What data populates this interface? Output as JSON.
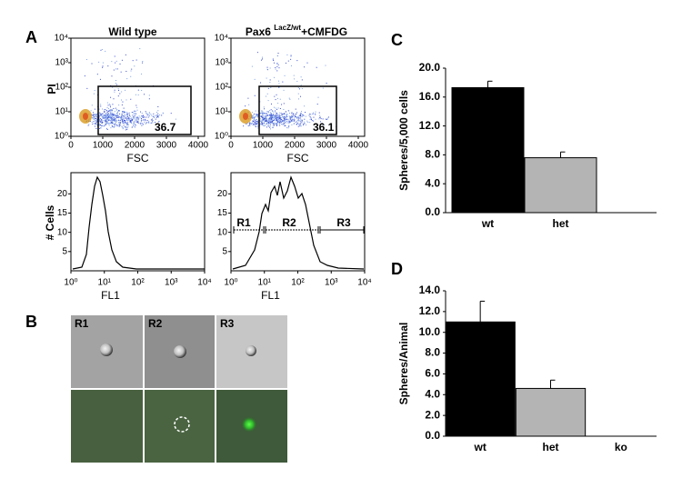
{
  "panel_labels": [
    "A",
    "B",
    "C",
    "D"
  ],
  "panel_a": {
    "scatter": {
      "xlim": [
        0,
        4200
      ],
      "ylim": [
        1,
        10000
      ],
      "xlabel": "FSC",
      "ylabel": "PI",
      "xticks": [
        0,
        1000,
        2000,
        3000,
        4000
      ],
      "yticks": [
        {
          "value": 1,
          "label": "10⁰"
        },
        {
          "value": 10,
          "label": "10¹"
        },
        {
          "value": 100,
          "label": "10²"
        },
        {
          "value": 1000,
          "label": "10³"
        },
        {
          "value": 10000,
          "label": "10⁴"
        }
      ],
      "plots": [
        {
          "title": "Wild type",
          "gate_value": "36.7"
        },
        {
          "title_parts": [
            "Pax6 ",
            "LacZ/wt",
            "+CMFDG"
          ],
          "gate_value": "36.1"
        }
      ]
    },
    "histogram": {
      "xlim": [
        1,
        10000
      ],
      "ylim": [
        0,
        25.5
      ],
      "xlabel": "FL1",
      "ylabel": "# Cells",
      "xticks": [
        {
          "value": 1,
          "label": "10⁰"
        },
        {
          "value": 10,
          "label": "10¹"
        },
        {
          "value": 100,
          "label": "10²"
        },
        {
          "value": 1000,
          "label": "10³"
        },
        {
          "value": 10000,
          "label": "10⁴"
        }
      ],
      "yticks": [
        5,
        10,
        15,
        20
      ],
      "gates": [
        "R1",
        "R2",
        "R3"
      ]
    }
  },
  "panel_b": {
    "columns": [
      "R1",
      "R2",
      "R3"
    ]
  },
  "chart_data": [
    {
      "type": "bar",
      "categories": [
        "wt",
        "het"
      ],
      "values": [
        17.3,
        7.6
      ],
      "errors": [
        0.9,
        0.8
      ],
      "colors": [
        "#000000",
        "#b4b4b4"
      ],
      "ylabel": "Spheres/5,000 cells",
      "ylim": [
        0,
        20
      ],
      "yticks": [
        {
          "value": 0,
          "label": "0.0"
        },
        {
          "value": 4,
          "label": "4.0"
        },
        {
          "value": 8,
          "label": "8.0"
        },
        {
          "value": 12,
          "label": "12.0"
        },
        {
          "value": 16,
          "label": "16.0"
        },
        {
          "value": 20,
          "label": "20.0"
        }
      ]
    },
    {
      "type": "bar",
      "categories": [
        "wt",
        "het",
        "ko"
      ],
      "values": [
        11.0,
        4.6,
        0
      ],
      "errors": [
        2.0,
        0.8,
        null
      ],
      "colors": [
        "#000000",
        "#b4b4b4",
        "#000000"
      ],
      "ylabel": "Spheres/Animal",
      "ylim": [
        0,
        14
      ],
      "yticks": [
        {
          "value": 0,
          "label": "0.0"
        },
        {
          "value": 2,
          "label": "2.0"
        },
        {
          "value": 4,
          "label": "4.0"
        },
        {
          "value": 6,
          "label": "6.0"
        },
        {
          "value": 8,
          "label": "8.0"
        },
        {
          "value": 10,
          "label": "10.0"
        },
        {
          "value": 12,
          "label": "12.0"
        },
        {
          "value": 14,
          "label": "14.0"
        }
      ]
    }
  ]
}
